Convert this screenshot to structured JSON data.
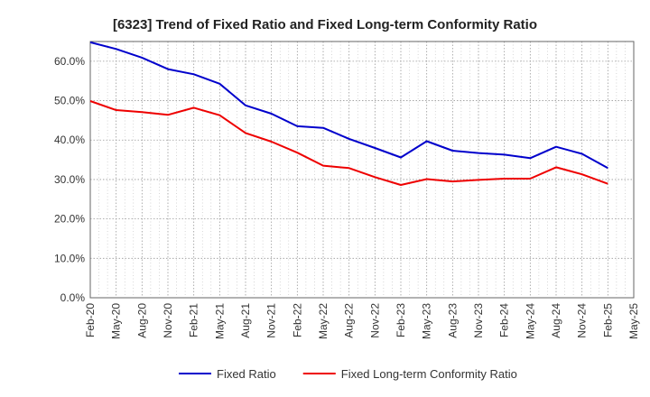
{
  "chart_data": {
    "type": "line",
    "title": "[6323]  Trend of Fixed Ratio and Fixed Long-term Conformity Ratio",
    "xlabel": "",
    "ylabel": "",
    "categories": [
      "Feb-20",
      "May-20",
      "Aug-20",
      "Nov-20",
      "Feb-21",
      "May-21",
      "Aug-21",
      "Nov-21",
      "Feb-22",
      "May-22",
      "Aug-22",
      "Nov-22",
      "Feb-23",
      "May-23",
      "Aug-23",
      "Nov-23",
      "Feb-24",
      "May-24",
      "Aug-24",
      "Nov-24",
      "Feb-25",
      "May-25"
    ],
    "ylim": [
      0,
      65
    ],
    "yticks": [
      0,
      10,
      20,
      30,
      40,
      50,
      60
    ],
    "ytick_labels": [
      "0.0%",
      "10.0%",
      "20.0%",
      "30.0%",
      "40.0%",
      "50.0%",
      "60.0%"
    ],
    "grid": true,
    "legend_position": "bottom",
    "series": [
      {
        "name": "Fixed Ratio",
        "color": "#0000cc",
        "values": [
          64.8,
          63.1,
          60.9,
          58.0,
          56.7,
          54.3,
          48.8,
          46.7,
          43.5,
          43.1,
          40.3,
          38.0,
          35.6,
          39.7,
          37.3,
          36.7,
          36.3,
          35.4,
          38.3,
          36.5,
          32.9,
          null
        ]
      },
      {
        "name": "Fixed Long-term Conformity Ratio",
        "color": "#ee0000",
        "values": [
          49.9,
          47.6,
          47.1,
          46.4,
          48.2,
          46.3,
          41.8,
          39.6,
          36.8,
          33.5,
          32.9,
          30.6,
          28.6,
          30.1,
          29.5,
          29.9,
          30.2,
          30.2,
          33.1,
          31.3,
          28.9,
          null
        ]
      }
    ]
  }
}
